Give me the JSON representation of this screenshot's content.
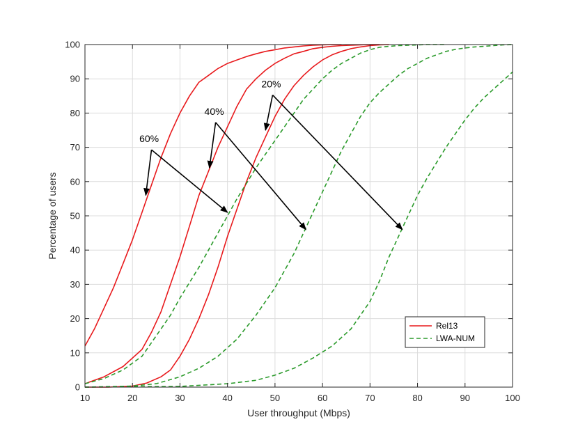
{
  "chart_data": {
    "type": "line",
    "title": "",
    "xlabel": "User throughput (Mbps)",
    "ylabel": "Percentage of users",
    "xlim": [
      10,
      100
    ],
    "ylim": [
      0,
      100
    ],
    "xticks": [
      10,
      20,
      30,
      40,
      50,
      60,
      70,
      80,
      90,
      100
    ],
    "yticks": [
      0,
      10,
      20,
      30,
      40,
      50,
      60,
      70,
      80,
      90,
      100
    ],
    "grid": true,
    "legend_position": "bottom-right",
    "colors": {
      "Rel13": "#e8191c",
      "LWA-NUM": "#2a9a2a",
      "arrow": "#000000",
      "grid": "#dcdcdc"
    },
    "series": [
      {
        "name": "Rel13",
        "group": "60%",
        "style": "solid",
        "x": [
          10,
          12,
          14,
          16,
          18,
          20,
          22,
          24,
          26,
          28,
          30,
          32,
          34,
          36,
          38,
          40,
          42,
          44,
          46,
          48,
          50,
          52,
          54,
          56,
          58,
          60,
          62,
          64
        ],
        "y": [
          12,
          17,
          23,
          29,
          36,
          43,
          51,
          59,
          67,
          74,
          80,
          85,
          89,
          91,
          93,
          94.5,
          95.5,
          96.5,
          97.3,
          98,
          98.5,
          99,
          99.3,
          99.6,
          99.8,
          99.9,
          100,
          100
        ]
      },
      {
        "name": "Rel13",
        "group": "40%",
        "style": "solid",
        "x": [
          10,
          14,
          18,
          22,
          24,
          26,
          28,
          30,
          32,
          34,
          36,
          38,
          40,
          42,
          44,
          46,
          48,
          50,
          52,
          54,
          56,
          58,
          60,
          62,
          64,
          66,
          68,
          70,
          72
        ],
        "y": [
          1,
          3,
          6,
          11,
          16,
          22,
          30,
          38,
          47,
          56,
          63,
          70,
          76,
          82,
          87,
          90,
          92.5,
          94.5,
          96,
          97.3,
          98,
          98.8,
          99.2,
          99.5,
          99.7,
          99.8,
          99.9,
          100,
          100
        ]
      },
      {
        "name": "Rel13",
        "group": "20%",
        "style": "solid",
        "x": [
          10,
          15,
          20,
          23,
          26,
          28,
          30,
          32,
          34,
          36,
          38,
          40,
          42,
          44,
          46,
          48,
          50,
          52,
          54,
          56,
          58,
          60,
          62,
          64,
          66,
          68,
          70,
          72,
          74
        ],
        "y": [
          0,
          0,
          0.3,
          1.2,
          3,
          5,
          9,
          14,
          20,
          27,
          35,
          44,
          52,
          60,
          67,
          73,
          79,
          84,
          88,
          91,
          93.5,
          95.5,
          97,
          98,
          98.8,
          99.3,
          99.7,
          99.9,
          100
        ]
      },
      {
        "name": "LWA-NUM",
        "group": "60%",
        "style": "dashed",
        "x": [
          10,
          14,
          18,
          22,
          26,
          28,
          30,
          32,
          34,
          36,
          38,
          40,
          42,
          44,
          46,
          48,
          50,
          52,
          54,
          56,
          58,
          60,
          62,
          64,
          66,
          68,
          70,
          72,
          74,
          76,
          78,
          80,
          82,
          84,
          86
        ],
        "y": [
          1,
          2.5,
          5,
          9,
          17,
          21,
          26,
          30.5,
          35,
          40,
          45,
          50,
          55,
          59.5,
          64,
          68,
          72,
          76,
          80,
          84,
          87,
          90,
          92.5,
          94.5,
          96,
          97.5,
          98.5,
          99.2,
          99.5,
          99.7,
          99.8,
          99.9,
          100,
          100,
          100
        ]
      },
      {
        "name": "LWA-NUM",
        "group": "40%",
        "style": "dashed",
        "x": [
          10,
          20,
          25,
          30,
          34,
          38,
          42,
          46,
          50,
          54,
          56,
          58,
          60,
          62,
          64,
          66,
          68,
          70,
          72,
          74,
          76,
          78,
          80,
          82,
          84,
          86,
          88,
          90,
          92,
          94,
          96,
          98,
          100
        ],
        "y": [
          0,
          0.3,
          1,
          3,
          5.5,
          9,
          14,
          21,
          29,
          39,
          45,
          51,
          57,
          63,
          69,
          74,
          79,
          83,
          86,
          88.5,
          91,
          93,
          94.5,
          96,
          97,
          98,
          98.6,
          99,
          99.3,
          99.5,
          99.7,
          99.9,
          100
        ]
      },
      {
        "name": "LWA-NUM",
        "group": "20%",
        "style": "dashed",
        "x": [
          10,
          30,
          40,
          46,
          50,
          54,
          58,
          62,
          66,
          70,
          72,
          74,
          76,
          78,
          80,
          82,
          84,
          86,
          88,
          90,
          92,
          94,
          96,
          98,
          100
        ],
        "y": [
          0,
          0.2,
          1,
          2,
          3.5,
          5.5,
          8.5,
          12,
          17,
          25,
          31,
          38,
          44,
          50,
          56,
          61,
          65.5,
          70,
          74,
          78,
          81.5,
          84.5,
          87,
          89.5,
          92
        ]
      }
    ],
    "annotations": [
      {
        "text": "60%",
        "x": 23.5,
        "y": 71.5,
        "from": [
          24,
          70.5
        ],
        "to": [
          [
            22.8,
            56
          ],
          [
            40,
            51
          ]
        ]
      },
      {
        "text": "40%",
        "x": 37.2,
        "y": 79.5,
        "from": [
          37.5,
          78.5
        ],
        "to": [
          [
            36.2,
            64
          ],
          [
            56.5,
            46
          ]
        ]
      },
      {
        "text": "20%",
        "x": 49.2,
        "y": 87.5,
        "from": [
          49.5,
          86.5
        ],
        "to": [
          [
            48,
            75
          ],
          [
            76.8,
            46
          ]
        ]
      }
    ],
    "legend": [
      {
        "label": "Rel13",
        "style": "solid"
      },
      {
        "label": "LWA-NUM",
        "style": "dashed"
      }
    ]
  }
}
